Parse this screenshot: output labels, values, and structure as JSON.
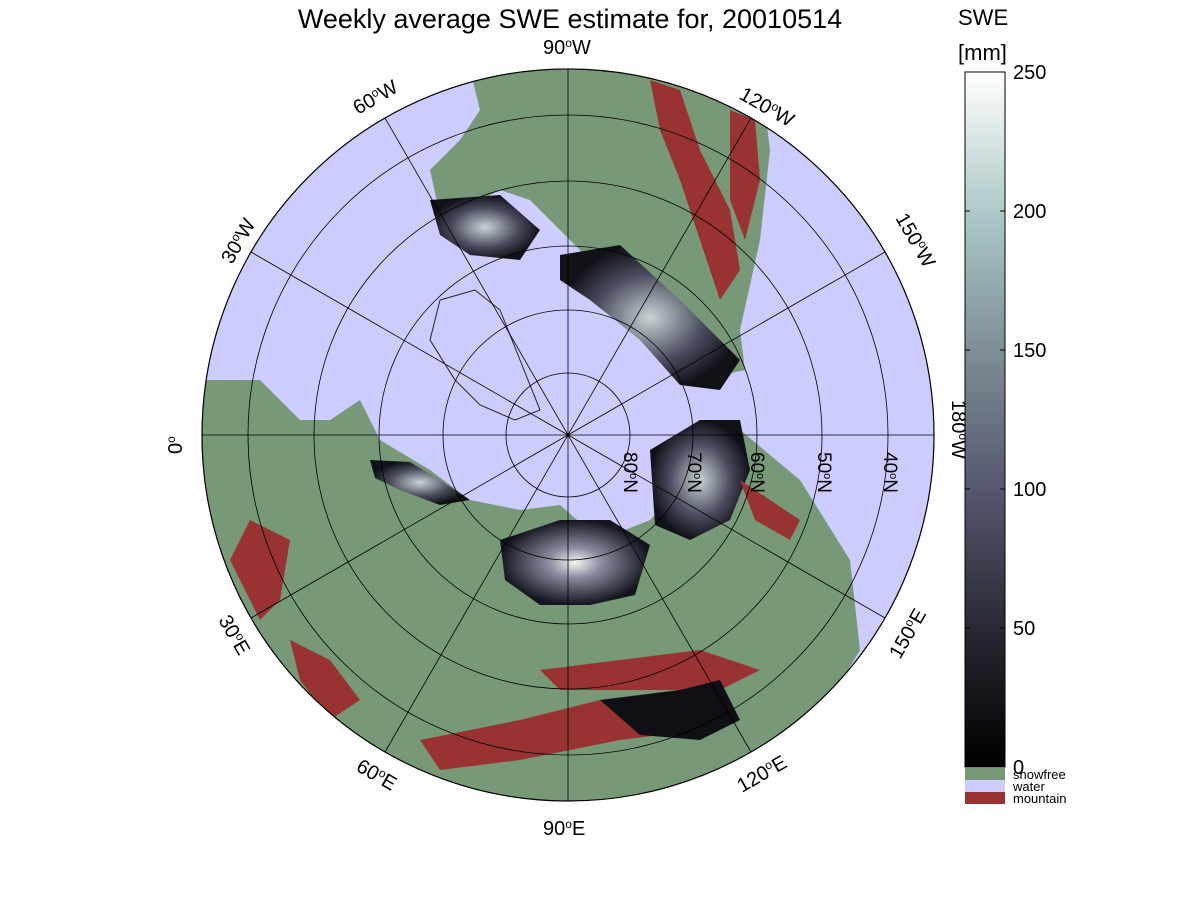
{
  "title": "Weekly average SWE estimate for, 20010514",
  "map": {
    "projection": "north polar stereographic",
    "longitude_labels": {
      "w90": {
        "deg": "90",
        "dir": "W"
      },
      "w60": {
        "deg": "60",
        "dir": "W"
      },
      "w120": {
        "deg": "120",
        "dir": "W"
      },
      "w30": {
        "deg": "30",
        "dir": "W"
      },
      "w150": {
        "deg": "150",
        "dir": "W"
      },
      "zero": {
        "deg": "0",
        "dir": ""
      },
      "w180": {
        "deg": "180",
        "dir": "W"
      },
      "e30": {
        "deg": "30",
        "dir": "E"
      },
      "e150": {
        "deg": "150",
        "dir": "E"
      },
      "e60": {
        "deg": "60",
        "dir": "E"
      },
      "e120": {
        "deg": "120",
        "dir": "E"
      },
      "e90": {
        "deg": "90",
        "dir": "E"
      }
    },
    "latitude_labels": {
      "n80": {
        "deg": "80",
        "dir": "N"
      },
      "n70": {
        "deg": "70",
        "dir": "N"
      },
      "n60": {
        "deg": "60",
        "dir": "N"
      },
      "n50": {
        "deg": "50",
        "dir": "N"
      },
      "n40": {
        "deg": "40",
        "dir": "N"
      }
    },
    "colors": {
      "water": "#ccccff",
      "snowfree": "#779977",
      "mountain": "#993333",
      "snow_dark": "#0a0a12",
      "snow_bright": "#ffffff"
    }
  },
  "colorbar": {
    "title_line1": "SWE",
    "title_line2": "[mm]",
    "min": 0,
    "max": 250,
    "ticks": [
      "0",
      "50",
      "100",
      "150",
      "200",
      "250"
    ],
    "legend": [
      {
        "label": "snowfree",
        "color": "#779977"
      },
      {
        "label": "water",
        "color": "#ccccff"
      },
      {
        "label": "mountain",
        "color": "#993333"
      }
    ]
  }
}
